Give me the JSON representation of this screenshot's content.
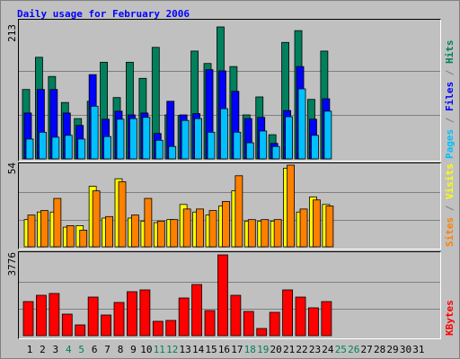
{
  "chart_data": {
    "type": "bar",
    "title": "Daily usage for February 2006",
    "categories": [
      "1",
      "2",
      "3",
      "4",
      "5",
      "6",
      "7",
      "8",
      "9",
      "10",
      "11",
      "12",
      "13",
      "14",
      "15",
      "16",
      "17",
      "18",
      "19",
      "20",
      "21",
      "22",
      "23",
      "24",
      "25",
      "26",
      "27",
      "28",
      "29",
      "30",
      "31"
    ],
    "category_colors": [
      "#000000",
      "#000000",
      "#000000",
      "#00805c",
      "#00805c",
      "#000000",
      "#000000",
      "#000000",
      "#000000",
      "#000000",
      "#00805c",
      "#00805c",
      "#000000",
      "#000000",
      "#000000",
      "#000000",
      "#000000",
      "#00805c",
      "#00805c",
      "#000000",
      "#000000",
      "#000000",
      "#000000",
      "#000000",
      "#00805c",
      "#00805c",
      "#000000",
      "#000000",
      "#000000",
      "#000000",
      "#000000"
    ],
    "legend_separator": " / ",
    "grid": true,
    "panels": [
      {
        "ylim": [
          0,
          213
        ],
        "yticks": [
          213
        ],
        "series": [
          {
            "name": "Hits",
            "color": "#00805c",
            "values": [
              112,
              164,
              133,
              91,
              65,
              93,
              156,
              99,
              156,
              130,
              180,
              71,
              70,
              174,
              154,
              213,
              149,
              71,
              100,
              39,
              188,
              207,
              96,
              174,
              null,
              null,
              null,
              null,
              null,
              null,
              null
            ]
          },
          {
            "name": "Files",
            "color": "#0000ff",
            "values": [
              74,
              112,
              112,
              74,
              54,
              136,
              64,
              77,
              71,
              74,
              41,
              93,
              71,
              73,
              144,
              142,
              109,
              65,
              67,
              25,
              78,
              149,
              64,
              97,
              null,
              null,
              null,
              null,
              null,
              null,
              null
            ]
          },
          {
            "name": "Pages",
            "color": "#00c0ff",
            "values": [
              32,
              43,
              35,
              38,
              32,
              85,
              36,
              64,
              65,
              67,
              30,
              20,
              62,
              65,
              43,
              81,
              43,
              26,
              45,
              20,
              68,
              113,
              38,
              77,
              null,
              null,
              null,
              null,
              null,
              null,
              null
            ]
          }
        ]
      },
      {
        "ylim": [
          0,
          54
        ],
        "yticks": [
          54
        ],
        "series": [
          {
            "name": "Visits",
            "color": "#ffff00",
            "values": [
              18,
              23,
              23,
              13,
              14,
              40,
              19,
              45,
              19,
              17,
              16,
              18,
              28,
              23,
              21,
              27,
              37,
              17,
              17,
              17,
              52,
              23,
              33,
              28,
              null,
              null,
              null,
              null,
              null,
              null,
              null
            ]
          },
          {
            "name": "Sites",
            "color": "#ff8000",
            "values": [
              21,
              24,
              32,
              14,
              11,
              37,
              20,
              43,
              21,
              32,
              17,
              18,
              25,
              25,
              24,
              30,
              47,
              18,
              18,
              18,
              54,
              25,
              31,
              27,
              null,
              null,
              null,
              null,
              null,
              null,
              null
            ]
          }
        ]
      },
      {
        "ylim": [
          0,
          3776
        ],
        "yticks": [
          3776
        ],
        "series": [
          {
            "name": "KBytes",
            "color": "#ff0000",
            "values": [
              1594,
              1888,
              1972,
              1007,
              503,
              1804,
              965,
              1553,
              2056,
              2140,
              671,
              713,
              1762,
              2392,
              1175,
              3776,
              1888,
              1133,
              336,
              1091,
              2140,
              1804,
              1301,
              1594,
              null,
              null,
              null,
              null,
              null,
              null,
              null
            ]
          }
        ]
      }
    ]
  }
}
